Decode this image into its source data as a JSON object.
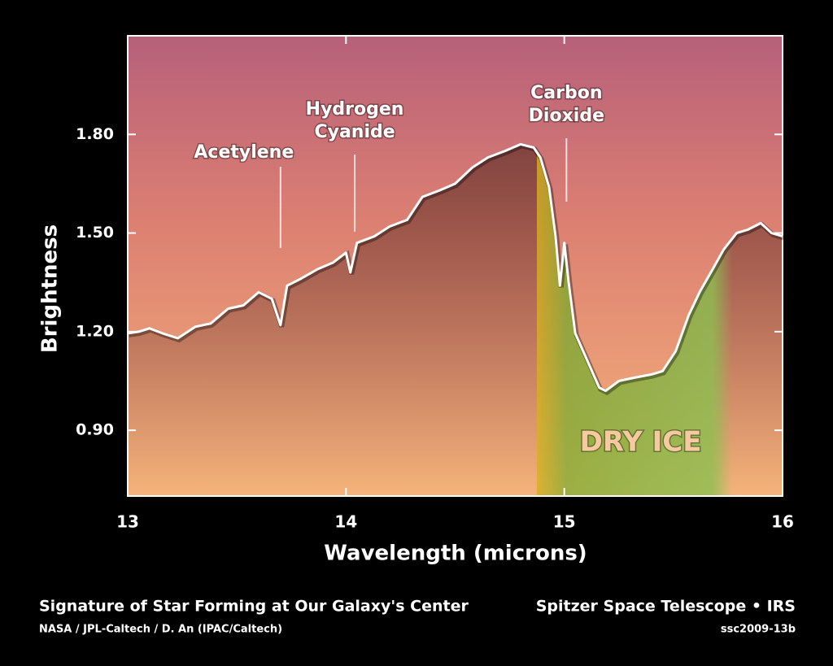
{
  "chart_data": {
    "type": "line",
    "xlabel": "Wavelength (microns)",
    "ylabel": "Brightness",
    "xlim": [
      13,
      16
    ],
    "xticks": [
      13,
      14,
      15,
      16
    ],
    "ylim": [
      0.7,
      2.1
    ],
    "yticks": [
      {
        "value": 0.9,
        "label": "0.90"
      },
      {
        "value": 1.2,
        "label": "1.20"
      },
      {
        "value": 1.5,
        "label": "1.50"
      },
      {
        "value": 1.8,
        "label": "1.80"
      }
    ],
    "x": [
      13.0,
      13.05,
      13.1,
      13.16,
      13.23,
      13.31,
      13.38,
      13.46,
      13.53,
      13.6,
      13.66,
      13.7,
      13.73,
      13.79,
      13.87,
      13.94,
      14.0,
      14.02,
      14.05,
      14.13,
      14.2,
      14.28,
      14.35,
      14.43,
      14.5,
      14.58,
      14.65,
      14.73,
      14.8,
      14.86,
      14.89,
      14.93,
      14.96,
      14.98,
      15.0,
      15.02,
      15.05,
      15.1,
      15.16,
      15.19,
      15.25,
      15.32,
      15.4,
      15.45,
      15.51,
      15.57,
      15.62,
      15.68,
      15.73,
      15.79,
      15.84,
      15.9,
      15.95,
      16.0
    ],
    "series": [
      {
        "name": "Brightness",
        "color": "#ffffff",
        "values": [
          1.195,
          1.2,
          1.21,
          1.195,
          1.18,
          1.215,
          1.225,
          1.27,
          1.28,
          1.32,
          1.3,
          1.22,
          1.34,
          1.36,
          1.39,
          1.41,
          1.44,
          1.38,
          1.47,
          1.49,
          1.52,
          1.54,
          1.61,
          1.63,
          1.65,
          1.7,
          1.73,
          1.75,
          1.77,
          1.76,
          1.73,
          1.64,
          1.49,
          1.34,
          1.47,
          1.35,
          1.195,
          1.12,
          1.03,
          1.02,
          1.05,
          1.06,
          1.07,
          1.08,
          1.14,
          1.25,
          1.32,
          1.39,
          1.45,
          1.5,
          1.51,
          1.53,
          1.5,
          1.49
        ]
      }
    ],
    "annotations": [
      {
        "lines": [
          "Acetylene"
        ],
        "x": 13.7
      },
      {
        "lines": [
          "Hydrogen",
          "Cyanide"
        ],
        "x": 14.04
      },
      {
        "lines": [
          "Carbon",
          "Dioxide"
        ],
        "x": 15.01
      },
      {
        "lines": [
          "DRY ICE"
        ],
        "x": 15.35
      }
    ],
    "caption": "Signature of Star Forming at Our Galaxy's Center",
    "credit": "NASA / JPL-Caltech / D. An (IPAC/Caltech)",
    "instrument": "Spitzer Space Telescope • IRS",
    "id": "ssc2009-13b"
  }
}
